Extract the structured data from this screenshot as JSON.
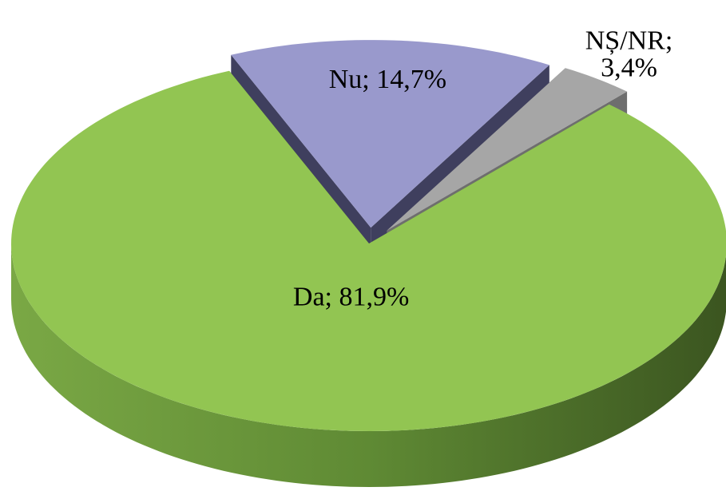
{
  "chart_data": {
    "type": "pie3d",
    "categories": [
      "Nu",
      "NȘ/NR",
      "Da"
    ],
    "values": [
      14.7,
      3.4,
      81.9
    ],
    "value_labels": [
      "Nu; 14,7%",
      "NȘ/NR; 3,4%",
      "Da; 81,9%"
    ],
    "colors": [
      "#9999cc",
      "#a6a6a6",
      "#92c552"
    ],
    "side_colors": [
      "#3f3f5e",
      "#6e6e6e",
      "#4f7330"
    ],
    "exploded": [
      true,
      true,
      false
    ]
  }
}
